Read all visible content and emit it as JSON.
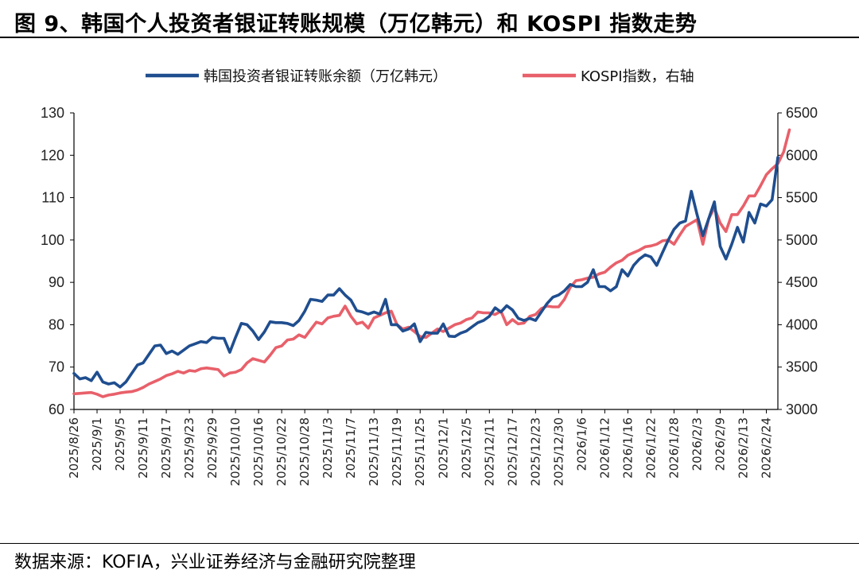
{
  "title": "图 9、韩国个人投资者银证转账规模（万亿韩元）和 KOSPI 指数走势",
  "source": "数据来源：KOFIA，兴业证券经济与金融研究院整理",
  "colors": {
    "deposits": "#1f4e8f",
    "kospi": "#e8606a",
    "axis": "#000000"
  },
  "chart_data": {
    "type": "line",
    "title": "韩国个人投资者银证转账规模（万亿韩元）和 KOSPI 指数走势",
    "left_axis": {
      "min": 60,
      "max": 130,
      "ticks": [
        60,
        70,
        80,
        90,
        100,
        110,
        120,
        130
      ]
    },
    "right_axis": {
      "min": 3000,
      "max": 6500,
      "ticks": [
        3000,
        3500,
        4000,
        4500,
        5000,
        5500,
        6000,
        6500
      ]
    },
    "x_tick_labels": [
      "2025/8/26",
      "2025/9/1",
      "2025/9/5",
      "2025/9/11",
      "2025/9/17",
      "2025/9/23",
      "2025/9/29",
      "2025/10/10",
      "2025/10/16",
      "2025/10/22",
      "2025/10/28",
      "2025/11/3",
      "2025/11/7",
      "2025/11/13",
      "2025/11/19",
      "2025/11/25",
      "2025/12/1",
      "2025/12/5",
      "2025/12/11",
      "2025/12/17",
      "2025/12/23",
      "2025/12/30",
      "2026/1/6",
      "2026/1/12",
      "2026/1/16",
      "2026/1/22",
      "2026/1/28",
      "2026/2/3",
      "2026/2/9",
      "2026/2/13",
      "2026/2/24"
    ],
    "x_tick_step": 4,
    "legend_position": "top",
    "series": [
      {
        "name": "韩国投资者银证转账余额（万亿韩元）",
        "axis": "left",
        "values": [
          68.5,
          67.2,
          67.5,
          66.8,
          68.8,
          66.5,
          66.0,
          66.3,
          65.3,
          66.5,
          68.5,
          70.5,
          71.0,
          73.0,
          75.0,
          75.2,
          73.2,
          73.8,
          73.0,
          74.0,
          75.0,
          75.5,
          76.0,
          75.8,
          77.0,
          76.8,
          76.8,
          73.5,
          77.0,
          80.3,
          80.0,
          78.5,
          76.5,
          78.3,
          80.7,
          80.5,
          80.5,
          80.3,
          79.8,
          81.0,
          83.2,
          86.0,
          85.8,
          85.5,
          87.0,
          87.0,
          88.5,
          87.0,
          85.8,
          83.3,
          83.0,
          82.5,
          83.0,
          82.5,
          86.0,
          80.0,
          80.0,
          78.5,
          79.0,
          80.2,
          76.0,
          78.2,
          78.0,
          78.0,
          80.2,
          77.3,
          77.2,
          78.0,
          78.5,
          79.5,
          80.5,
          81.0,
          82.0,
          84.0,
          83.0,
          84.5,
          83.5,
          81.5,
          81.0,
          81.5,
          81.0,
          83.0,
          85.0,
          86.5,
          87.0,
          88.0,
          89.5,
          89.0,
          89.0,
          90.0,
          93.0,
          89.0,
          89.0,
          88.0,
          89.0,
          93.0,
          91.5,
          94.0,
          95.5,
          96.5,
          96.0,
          94.0,
          97.0,
          100.0,
          102.5,
          104.0,
          104.5,
          111.5,
          106.0,
          101.0,
          105.0,
          109.0,
          98.5,
          95.5,
          99.0,
          103.0,
          99.5,
          106.5,
          104.0,
          108.5,
          108.0,
          109.5,
          119.5
        ]
      },
      {
        "name": "KOSPI指数，右轴",
        "axis": "right",
        "values": [
          3185,
          3190,
          3195,
          3200,
          3180,
          3150,
          3170,
          3180,
          3195,
          3205,
          3210,
          3230,
          3260,
          3300,
          3330,
          3360,
          3400,
          3420,
          3450,
          3430,
          3460,
          3450,
          3480,
          3490,
          3480,
          3470,
          3395,
          3430,
          3440,
          3470,
          3550,
          3600,
          3580,
          3560,
          3640,
          3730,
          3750,
          3820,
          3830,
          3880,
          3850,
          3940,
          4030,
          4010,
          4080,
          4100,
          4110,
          4220,
          4100,
          4010,
          4030,
          3960,
          4080,
          4110,
          4140,
          4160,
          4000,
          3950,
          3970,
          3920,
          3860,
          3850,
          3900,
          3950,
          3920,
          3960,
          4000,
          4020,
          4060,
          4080,
          4150,
          4140,
          4140,
          4120,
          4160,
          4000,
          4060,
          4010,
          4020,
          4100,
          4120,
          4190,
          4220,
          4210,
          4210,
          4300,
          4440,
          4520,
          4530,
          4550,
          4560,
          4600,
          4620,
          4680,
          4730,
          4760,
          4820,
          4850,
          4880,
          4920,
          4930,
          4950,
          4990,
          5000,
          4950,
          5060,
          5160,
          5200,
          5240,
          4950,
          5250,
          5380,
          5200,
          5100,
          5300,
          5300,
          5400,
          5520,
          5520,
          5640,
          5770,
          5840,
          5900,
          6040,
          6300
        ]
      }
    ]
  }
}
